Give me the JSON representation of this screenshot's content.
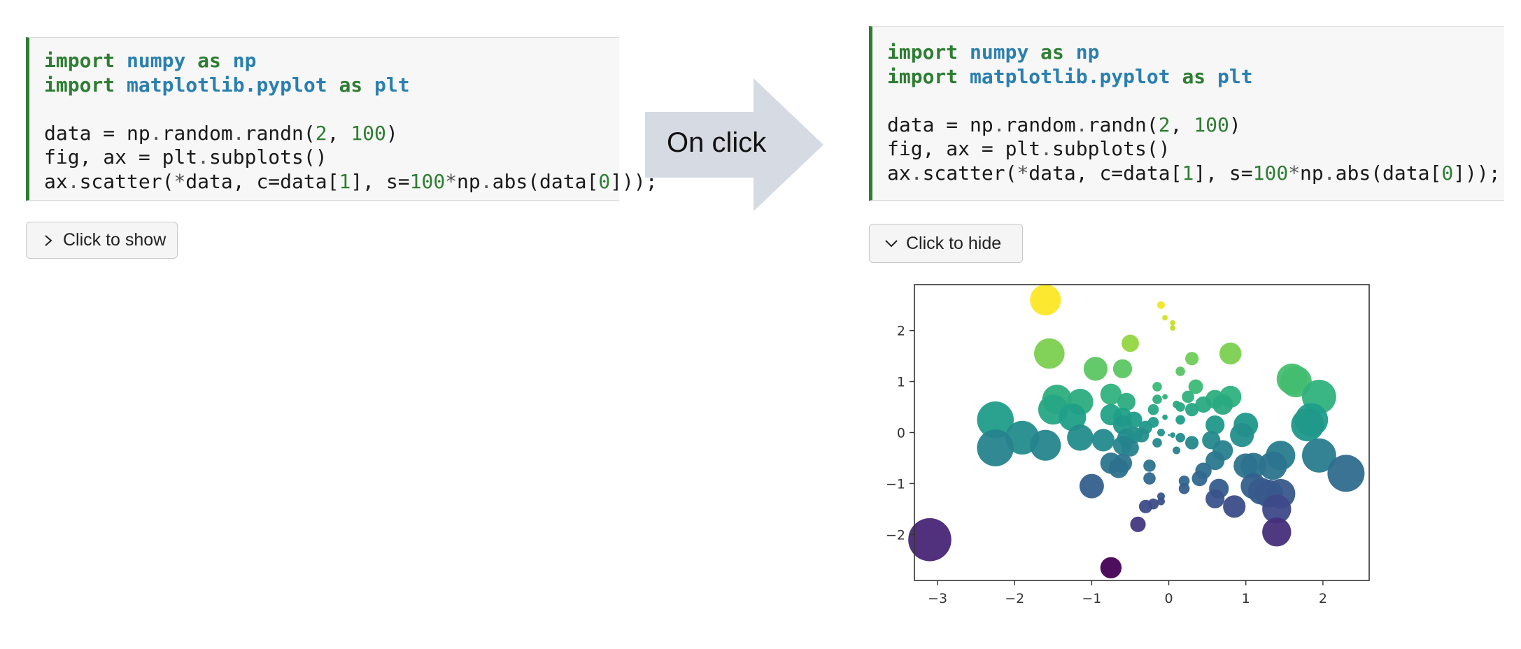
{
  "left_cell": {
    "lines": [
      [
        {
          "t": "import",
          "c": "kw"
        },
        {
          "t": " "
        },
        {
          "t": "numpy",
          "c": "mod"
        },
        {
          "t": " "
        },
        {
          "t": "as",
          "c": "kw"
        },
        {
          "t": " "
        },
        {
          "t": "np",
          "c": "mod"
        }
      ],
      [
        {
          "t": "import",
          "c": "kw"
        },
        {
          "t": " "
        },
        {
          "t": "matplotlib.pyplot",
          "c": "mod"
        },
        {
          "t": " "
        },
        {
          "t": "as",
          "c": "kw"
        },
        {
          "t": " "
        },
        {
          "t": "plt",
          "c": "mod"
        }
      ],
      [],
      [
        {
          "t": "data = np"
        },
        {
          "t": ".",
          "c": "op"
        },
        {
          "t": "random"
        },
        {
          "t": ".",
          "c": "op"
        },
        {
          "t": "randn("
        },
        {
          "t": "2",
          "c": "num"
        },
        {
          "t": ", "
        },
        {
          "t": "100",
          "c": "num"
        },
        {
          "t": ")"
        }
      ],
      [
        {
          "t": "fig, ax = plt"
        },
        {
          "t": ".",
          "c": "op"
        },
        {
          "t": "subplots()"
        }
      ],
      [
        {
          "t": "ax"
        },
        {
          "t": ".",
          "c": "op"
        },
        {
          "t": "scatter("
        },
        {
          "t": "*",
          "c": "op"
        },
        {
          "t": "data, c=data["
        },
        {
          "t": "1",
          "c": "num"
        },
        {
          "t": "], s="
        },
        {
          "t": "100",
          "c": "num"
        },
        {
          "t": "*",
          "c": "op"
        },
        {
          "t": "np"
        },
        {
          "t": ".",
          "c": "op"
        },
        {
          "t": "abs(data["
        },
        {
          "t": "0",
          "c": "num"
        },
        {
          "t": "]));"
        }
      ]
    ]
  },
  "right_cell": {
    "lines": [
      [
        {
          "t": "import",
          "c": "kw"
        },
        {
          "t": " "
        },
        {
          "t": "numpy",
          "c": "mod"
        },
        {
          "t": " "
        },
        {
          "t": "as",
          "c": "kw"
        },
        {
          "t": " "
        },
        {
          "t": "np",
          "c": "mod"
        }
      ],
      [
        {
          "t": "import",
          "c": "kw"
        },
        {
          "t": " "
        },
        {
          "t": "matplotlib.pyplot",
          "c": "mod"
        },
        {
          "t": " "
        },
        {
          "t": "as",
          "c": "kw"
        },
        {
          "t": " "
        },
        {
          "t": "plt",
          "c": "mod"
        }
      ],
      [],
      [
        {
          "t": "data = np"
        },
        {
          "t": ".",
          "c": "op"
        },
        {
          "t": "random"
        },
        {
          "t": ".",
          "c": "op"
        },
        {
          "t": "randn("
        },
        {
          "t": "2",
          "c": "num"
        },
        {
          "t": ", "
        },
        {
          "t": "100",
          "c": "num"
        },
        {
          "t": ")"
        }
      ],
      [
        {
          "t": "fig, ax = plt"
        },
        {
          "t": ".",
          "c": "op"
        },
        {
          "t": "subplots()"
        }
      ],
      [
        {
          "t": "ax"
        },
        {
          "t": ".",
          "c": "op"
        },
        {
          "t": "scatter("
        },
        {
          "t": "*",
          "c": "op"
        },
        {
          "t": "data, c=data["
        },
        {
          "t": "1",
          "c": "num"
        },
        {
          "t": "], s="
        },
        {
          "t": "100",
          "c": "num"
        },
        {
          "t": "*",
          "c": "op"
        },
        {
          "t": "np"
        },
        {
          "t": ".",
          "c": "op"
        },
        {
          "t": "abs(data["
        },
        {
          "t": "0",
          "c": "num"
        },
        {
          "t": "]));"
        }
      ]
    ]
  },
  "show_button": {
    "label": "Click to show",
    "icon": "chevron-right-icon"
  },
  "hide_button": {
    "label": "Click to hide",
    "icon": "chevron-down-icon"
  },
  "arrow": {
    "label": "On click",
    "color": "#d6dae2"
  },
  "colors": {
    "keyword": "#2e7d32",
    "module": "#2a7fb0",
    "number": "#2e7d32",
    "cell_border": "#2e7d32"
  },
  "chart_data": {
    "type": "scatter",
    "title": "",
    "xlabel": "",
    "ylabel": "",
    "xlim": [
      -3.3,
      2.6
    ],
    "ylim": [
      -2.9,
      2.9
    ],
    "xticks": [
      -3,
      -2,
      -1,
      0,
      1,
      2
    ],
    "yticks": [
      -2,
      -1,
      0,
      1,
      2
    ],
    "xtick_labels": [
      "−3",
      "−2",
      "−1",
      "0",
      "1",
      "2"
    ],
    "ytick_labels": [
      "−2",
      "−1",
      "0",
      "1",
      "2"
    ],
    "grid": false,
    "colormap": "viridis",
    "size_rule": "s = 100 * |x|",
    "points": [
      {
        "x": -1.6,
        "y": 2.6
      },
      {
        "x": -0.1,
        "y": 2.5
      },
      {
        "x": -0.05,
        "y": 2.25
      },
      {
        "x": 0.05,
        "y": 2.15
      },
      {
        "x": 0.05,
        "y": 2.05
      },
      {
        "x": -0.5,
        "y": 1.75
      },
      {
        "x": -1.55,
        "y": 1.55
      },
      {
        "x": 0.8,
        "y": 1.55
      },
      {
        "x": 0.3,
        "y": 1.45
      },
      {
        "x": -0.95,
        "y": 1.25
      },
      {
        "x": -0.6,
        "y": 1.25
      },
      {
        "x": 0.15,
        "y": 1.2
      },
      {
        "x": 1.6,
        "y": 1.05
      },
      {
        "x": 1.65,
        "y": 1.0
      },
      {
        "x": -0.15,
        "y": 0.9
      },
      {
        "x": 0.35,
        "y": 0.9
      },
      {
        "x": -1.45,
        "y": 0.65
      },
      {
        "x": -1.15,
        "y": 0.6
      },
      {
        "x": -0.75,
        "y": 0.75
      },
      {
        "x": -0.55,
        "y": 0.6
      },
      {
        "x": -0.15,
        "y": 0.65
      },
      {
        "x": -0.05,
        "y": 0.7
      },
      {
        "x": 0.25,
        "y": 0.7
      },
      {
        "x": 0.6,
        "y": 0.65
      },
      {
        "x": 0.8,
        "y": 0.7
      },
      {
        "x": 1.95,
        "y": 0.7
      },
      {
        "x": -1.5,
        "y": 0.45
      },
      {
        "x": -1.25,
        "y": 0.3
      },
      {
        "x": -0.75,
        "y": 0.35
      },
      {
        "x": -0.6,
        "y": 0.3
      },
      {
        "x": 0.15,
        "y": 0.5
      },
      {
        "x": 0.7,
        "y": 0.55
      },
      {
        "x": 0.45,
        "y": 0.55
      },
      {
        "x": -2.25,
        "y": 0.25
      },
      {
        "x": -0.2,
        "y": 0.45
      },
      {
        "x": 0.1,
        "y": 0.55
      },
      {
        "x": 0.3,
        "y": 0.45
      },
      {
        "x": -0.45,
        "y": 0.25
      },
      {
        "x": -0.6,
        "y": 0.15
      },
      {
        "x": 1.85,
        "y": 0.25
      },
      {
        "x": 1.8,
        "y": 0.15
      },
      {
        "x": 1.0,
        "y": 0.15
      },
      {
        "x": 0.6,
        "y": 0.15
      },
      {
        "x": -0.3,
        "y": 0.1
      },
      {
        "x": -0.2,
        "y": 0.2
      },
      {
        "x": 0.15,
        "y": 0.25
      },
      {
        "x": -1.9,
        "y": -0.1
      },
      {
        "x": -1.15,
        "y": -0.1
      },
      {
        "x": -1.6,
        "y": -0.25
      },
      {
        "x": -2.25,
        "y": -0.3
      },
      {
        "x": -0.55,
        "y": -0.1
      },
      {
        "x": -0.45,
        "y": -0.05
      },
      {
        "x": -0.35,
        "y": -0.05
      },
      {
        "x": -0.1,
        "y": 0.0
      },
      {
        "x": 0.0,
        "y": -0.05
      },
      {
        "x": 0.15,
        "y": -0.1
      },
      {
        "x": 0.3,
        "y": -0.2
      },
      {
        "x": 0.55,
        "y": -0.15
      },
      {
        "x": 0.95,
        "y": -0.05
      },
      {
        "x": -0.85,
        "y": -0.15
      },
      {
        "x": -0.6,
        "y": -0.25
      },
      {
        "x": -0.5,
        "y": -0.3
      },
      {
        "x": -0.15,
        "y": -0.2
      },
      {
        "x": 0.7,
        "y": -0.35
      },
      {
        "x": 0.1,
        "y": -0.35
      },
      {
        "x": -0.75,
        "y": -0.6
      },
      {
        "x": -0.6,
        "y": -0.6
      },
      {
        "x": -0.65,
        "y": -0.7
      },
      {
        "x": -0.25,
        "y": -0.65
      },
      {
        "x": 0.6,
        "y": -0.55
      },
      {
        "x": 0.45,
        "y": -0.75
      },
      {
        "x": 1.45,
        "y": -0.45
      },
      {
        "x": 1.95,
        "y": -0.45
      },
      {
        "x": 1.0,
        "y": -0.65
      },
      {
        "x": 1.1,
        "y": -0.65
      },
      {
        "x": 1.35,
        "y": -0.65
      },
      {
        "x": 2.3,
        "y": -0.8
      },
      {
        "x": 0.4,
        "y": -0.9
      },
      {
        "x": 0.2,
        "y": -0.95
      },
      {
        "x": -0.25,
        "y": -0.9
      },
      {
        "x": -1.0,
        "y": -1.05
      },
      {
        "x": 0.2,
        "y": -1.1
      },
      {
        "x": 0.65,
        "y": -1.1
      },
      {
        "x": 1.1,
        "y": -1.05
      },
      {
        "x": 1.2,
        "y": -1.15
      },
      {
        "x": 1.3,
        "y": -1.2
      },
      {
        "x": 1.45,
        "y": -1.2
      },
      {
        "x": 0.6,
        "y": -1.3
      },
      {
        "x": -0.1,
        "y": -1.25
      },
      {
        "x": -0.2,
        "y": -1.4
      },
      {
        "x": -0.1,
        "y": -1.35
      },
      {
        "x": 1.4,
        "y": -1.5
      },
      {
        "x": -0.4,
        "y": -1.8
      },
      {
        "x": 1.4,
        "y": -1.95
      },
      {
        "x": -3.1,
        "y": -2.1
      },
      {
        "x": -0.75,
        "y": -2.65
      },
      {
        "x": 0.85,
        "y": -1.45
      },
      {
        "x": -0.3,
        "y": -1.45
      },
      {
        "x": 0.05,
        "y": -0.05
      },
      {
        "x": -0.05,
        "y": 0.3
      }
    ]
  }
}
